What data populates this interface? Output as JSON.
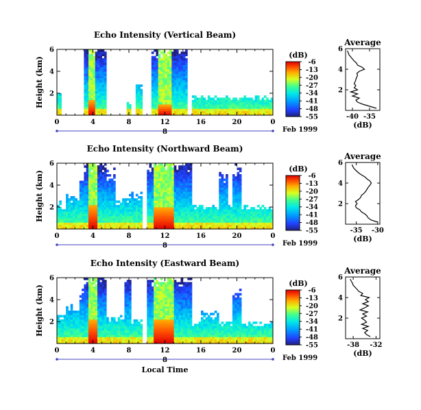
{
  "chart_data": [
    {
      "type": "heatmap",
      "title": "Echo Intensity (Vertical Beam)",
      "ylabel": "Height (km)",
      "x_ticks": [
        "0",
        "4",
        "8",
        "12",
        "16",
        "20",
        "0"
      ],
      "y_ticks": [
        "2",
        "4",
        "6"
      ],
      "xlim": [
        0,
        24
      ],
      "ylim": [
        0,
        6
      ],
      "date_label": "8",
      "date_suffix": "Feb 1999",
      "colorbar": {
        "unit": "(dB)",
        "ticks": [
          "-6",
          "-13",
          "-20",
          "-27",
          "-34",
          "-41",
          "-48",
          "-55"
        ],
        "range": [
          -55,
          -6
        ]
      },
      "active_intervals": [
        [
          0,
          0.5,
          2.0
        ],
        [
          3.0,
          5.5,
          6.0
        ],
        [
          7.8,
          8.2,
          1.2
        ],
        [
          8.8,
          9.6,
          2.6
        ],
        [
          10.5,
          14.5,
          6.0
        ],
        [
          15.0,
          24.0,
          1.6
        ]
      ],
      "intense_cores": [
        [
          3.6,
          4.2,
          1.4
        ],
        [
          11.2,
          12.8,
          1.0
        ]
      ],
      "average_profile": {
        "title": "Average",
        "xlabel": "(dB)",
        "x_ticks": [
          "-40",
          "-35"
        ],
        "xlim": [
          -42,
          -32
        ],
        "y_ticks": [
          "2",
          "4",
          "6"
        ],
        "ylim": [
          0,
          6
        ],
        "height_km": [
          0.2,
          0.4,
          0.6,
          0.8,
          1.0,
          1.2,
          1.4,
          1.6,
          1.8,
          2.0,
          2.2,
          2.4,
          2.6,
          2.8,
          3.0,
          3.2,
          3.4,
          3.6,
          3.8,
          4.0,
          4.2,
          4.4,
          4.6,
          4.8,
          5.0,
          5.2,
          5.4,
          5.6,
          5.8
        ],
        "db": [
          -33.0,
          -35.0,
          -37.0,
          -38.5,
          -39.0,
          -38.0,
          -40.0,
          -38.5,
          -40.5,
          -38.5,
          -39.5,
          -39.0,
          -39.5,
          -39.2,
          -39.0,
          -38.8,
          -38.5,
          -38.7,
          -38.0,
          -36.5,
          -37.2,
          -38.5,
          -38.8,
          -39.5,
          -40.0,
          -40.5,
          -41.0,
          -41.2,
          -41.5
        ]
      }
    },
    {
      "type": "heatmap",
      "title": "Echo Intensity (Northward Beam)",
      "ylabel": "Height (km)",
      "x_ticks": [
        "0",
        "4",
        "8",
        "12",
        "16",
        "20",
        "0"
      ],
      "y_ticks": [
        "2",
        "4",
        "6"
      ],
      "xlim": [
        0,
        24
      ],
      "ylim": [
        0,
        6
      ],
      "date_label": "8",
      "date_suffix": "Feb 1999",
      "colorbar": {
        "unit": "(dB)",
        "ticks": [
          "-6",
          "-13",
          "-20",
          "-27",
          "-34",
          "-41",
          "-48",
          "-55"
        ],
        "range": [
          -55,
          -6
        ]
      },
      "active_intervals": [
        [
          0,
          1.0,
          2.2
        ],
        [
          1.0,
          2.5,
          2.8
        ],
        [
          2.5,
          3.0,
          4.5
        ],
        [
          3.0,
          5.5,
          6.0
        ],
        [
          5.5,
          6.5,
          4.8
        ],
        [
          6.5,
          8.5,
          2.5
        ],
        [
          7.5,
          7.9,
          2.5
        ],
        [
          8.0,
          9.5,
          3.0
        ],
        [
          10.0,
          15.0,
          6.0
        ],
        [
          15.0,
          24.0,
          2.0
        ],
        [
          18.0,
          19.0,
          4.8
        ],
        [
          19.5,
          20.5,
          5.2
        ]
      ],
      "intense_cores": [
        [
          3.4,
          4.4,
          2.2
        ],
        [
          10.8,
          13.0,
          2.0
        ]
      ],
      "average_profile": {
        "title": "Average",
        "xlabel": "(dB)",
        "x_ticks": [
          "-35",
          "-30"
        ],
        "xlim": [
          -37.5,
          -29.5
        ],
        "y_ticks": [
          "2",
          "4",
          "6"
        ],
        "ylim": [
          0,
          6
        ],
        "height_km": [
          0.2,
          0.4,
          0.6,
          0.8,
          1.0,
          1.2,
          1.4,
          1.6,
          1.8,
          2.0,
          2.2,
          2.4,
          2.6,
          2.8,
          3.0,
          3.2,
          3.4,
          3.6,
          3.8,
          4.0,
          4.2,
          4.4,
          4.6,
          4.8,
          5.0,
          5.2,
          5.4,
          5.6,
          5.8
        ],
        "db": [
          -30.0,
          -31.5,
          -32.2,
          -32.5,
          -33.0,
          -33.8,
          -34.2,
          -35.0,
          -35.2,
          -34.8,
          -35.2,
          -34.5,
          -34.0,
          -33.8,
          -33.2,
          -32.8,
          -32.5,
          -32.2,
          -31.8,
          -31.5,
          -31.8,
          -32.5,
          -33.0,
          -33.8,
          -34.5,
          -35.0,
          -35.5,
          -35.8,
          -36.0
        ]
      }
    },
    {
      "type": "heatmap",
      "title": "Echo Intensity (Eastward Beam)",
      "ylabel": "Height (km)",
      "xlabel": "Local Time",
      "x_ticks": [
        "0",
        "4",
        "8",
        "12",
        "16",
        "20",
        "0"
      ],
      "y_ticks": [
        "2",
        "4",
        "6"
      ],
      "xlim": [
        0,
        24
      ],
      "ylim": [
        0,
        6
      ],
      "date_label": "8",
      "date_suffix": "Feb 1999",
      "colorbar": {
        "unit": "(dB)",
        "ticks": [
          "-6",
          "-13",
          "-20",
          "-27",
          "-34",
          "-41",
          "-48",
          "-55"
        ],
        "range": [
          -55,
          -6
        ]
      },
      "active_intervals": [
        [
          0,
          1.0,
          2.5
        ],
        [
          1.0,
          2.5,
          3.2
        ],
        [
          2.5,
          3.0,
          4.5
        ],
        [
          3.0,
          5.5,
          6.0
        ],
        [
          5.5,
          7.5,
          2.3
        ],
        [
          7.5,
          8.3,
          6.0
        ],
        [
          8.3,
          9.5,
          2.0
        ],
        [
          10.0,
          15.0,
          6.0
        ],
        [
          15.0,
          24.0,
          1.8
        ],
        [
          16.0,
          18.0,
          2.6
        ],
        [
          19.5,
          20.5,
          4.5
        ]
      ],
      "intense_cores": [
        [
          3.4,
          4.4,
          2.2
        ],
        [
          10.8,
          13.0,
          2.2
        ]
      ],
      "average_profile": {
        "title": "Average",
        "xlabel": "(dB)",
        "x_ticks": [
          "-38",
          "-32"
        ],
        "xlim": [
          -40,
          -31
        ],
        "y_ticks": [
          "2",
          "4",
          "6"
        ],
        "ylim": [
          0,
          6
        ],
        "height_km": [
          0.2,
          0.4,
          0.6,
          0.8,
          1.0,
          1.2,
          1.4,
          1.6,
          1.8,
          2.0,
          2.2,
          2.4,
          2.6,
          2.8,
          3.0,
          3.2,
          3.4,
          3.6,
          3.8,
          4.0,
          4.2,
          4.4,
          4.6,
          4.8,
          5.0,
          5.2,
          5.4,
          5.6,
          5.8
        ],
        "db": [
          -33.5,
          -34.5,
          -35.0,
          -34.2,
          -35.5,
          -34.0,
          -35.8,
          -34.5,
          -35.0,
          -35.8,
          -34.5,
          -35.5,
          -34.2,
          -36.2,
          -35.0,
          -34.0,
          -35.5,
          -34.0,
          -34.8,
          -33.8,
          -36.0,
          -35.5,
          -36.5,
          -37.0,
          -37.5,
          -38.0,
          -38.2,
          -38.5,
          -38.8
        ]
      }
    }
  ]
}
